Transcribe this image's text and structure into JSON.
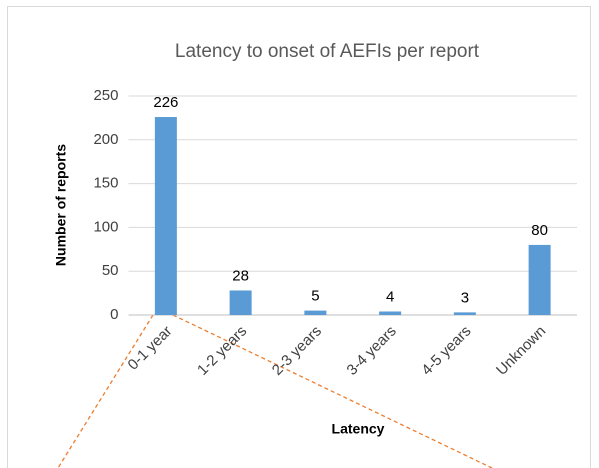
{
  "chart_data": {
    "type": "bar",
    "title": "Latency to onset of AEFIs per report",
    "x_label": "Latency",
    "y_label": "Number of reports",
    "categories": [
      "0-1 year",
      "1-2 years",
      "2-3 years",
      "3-4 years",
      "4-5 years",
      "Unknown"
    ],
    "values": [
      226,
      28,
      5,
      4,
      3,
      80
    ],
    "color": "#5b9bd5",
    "ylim": [
      0,
      250
    ],
    "yticks": [
      0,
      50,
      100,
      150,
      200,
      250
    ],
    "grid": true
  }
}
